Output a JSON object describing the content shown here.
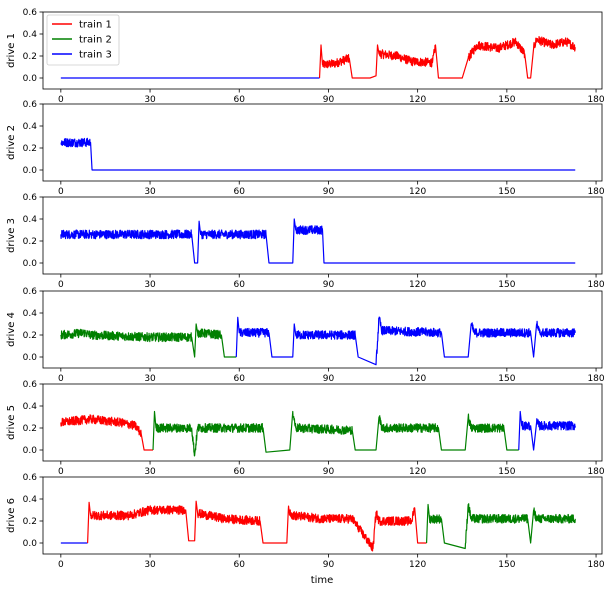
{
  "chart_data": {
    "type": "line",
    "xlabel": "time",
    "xlim": [
      -6,
      182
    ],
    "xticks": [
      0,
      30,
      60,
      90,
      120,
      150,
      180
    ],
    "ylim": [
      -0.1,
      0.6
    ],
    "yticks": [
      0.0,
      0.2,
      0.4,
      0.6
    ],
    "ytick_labels": [
      "0.0",
      "0.2",
      "0.4",
      "0.6"
    ],
    "grid": false,
    "legend_placement": "top-left",
    "colors": {
      "train 1": "#ff0000",
      "train 2": "#008000",
      "train 3": "#0000ff"
    },
    "legend": [
      "train 1",
      "train 2",
      "train 3"
    ],
    "subplots": [
      {
        "ylabel": "drive 1",
        "segments": [
          {
            "series": "train 3",
            "points": [
              [
                0,
                0.0
              ],
              [
                87,
                0.0
              ]
            ]
          },
          {
            "series": "train 1",
            "points": [
              [
                87,
                0.0
              ],
              [
                87.5,
                0.3
              ],
              [
                88,
                0.12
              ],
              [
                92,
                0.13
              ],
              [
                97,
                0.18
              ],
              [
                98,
                0.0
              ],
              [
                98.5,
                0.0
              ],
              [
                104,
                0.0
              ],
              [
                106,
                0.02
              ],
              [
                106.5,
                0.3
              ],
              [
                107,
                0.22
              ],
              [
                113,
                0.2
              ],
              [
                118,
                0.15
              ],
              [
                125,
                0.14
              ],
              [
                126,
                0.3
              ],
              [
                127,
                0.0
              ],
              [
                127.5,
                0.0
              ],
              [
                135,
                0.0
              ],
              [
                137,
                0.18
              ],
              [
                140,
                0.3
              ],
              [
                147,
                0.27
              ],
              [
                153,
                0.33
              ],
              [
                156,
                0.22
              ],
              [
                157,
                0.0
              ],
              [
                158,
                0.0
              ],
              [
                159,
                0.27
              ],
              [
                160,
                0.35
              ],
              [
                165,
                0.3
              ],
              [
                170,
                0.33
              ],
              [
                173,
                0.28
              ]
            ]
          }
        ]
      },
      {
        "ylabel": "drive 2",
        "segments": [
          {
            "series": "train 3",
            "points": [
              [
                0,
                0.25
              ],
              [
                10,
                0.25
              ],
              [
                10.5,
                0.0
              ],
              [
                173,
                0.0
              ]
            ]
          }
        ]
      },
      {
        "ylabel": "drive 3",
        "segments": [
          {
            "series": "train 3",
            "points": [
              [
                0,
                0.26
              ],
              [
                44,
                0.26
              ],
              [
                45,
                0.0
              ],
              [
                46,
                0.0
              ],
              [
                46.5,
                0.38
              ],
              [
                47,
                0.26
              ],
              [
                69,
                0.26
              ],
              [
                70,
                0.0
              ],
              [
                78,
                0.0
              ],
              [
                78.5,
                0.4
              ],
              [
                79,
                0.3
              ],
              [
                88,
                0.3
              ],
              [
                88.5,
                0.0
              ],
              [
                173,
                0.0
              ]
            ]
          }
        ]
      },
      {
        "ylabel": "drive 4",
        "segments": [
          {
            "series": "train 2",
            "points": [
              [
                0,
                0.2
              ],
              [
                8,
                0.22
              ],
              [
                10,
                0.2
              ],
              [
                30,
                0.18
              ],
              [
                44,
                0.18
              ],
              [
                45,
                0.0
              ],
              [
                45.5,
                0.3
              ],
              [
                46,
                0.22
              ],
              [
                54,
                0.2
              ],
              [
                55,
                0.0
              ],
              [
                59,
                0.0
              ]
            ]
          },
          {
            "series": "train 3",
            "points": [
              [
                59,
                0.0
              ],
              [
                59.5,
                0.36
              ],
              [
                60,
                0.22
              ],
              [
                70,
                0.22
              ],
              [
                71,
                0.0
              ],
              [
                78,
                0.0
              ],
              [
                78.5,
                0.3
              ],
              [
                79,
                0.2
              ],
              [
                99,
                0.2
              ],
              [
                100,
                0.0
              ],
              [
                106,
                -0.07
              ],
              [
                107,
                0.35
              ],
              [
                108,
                0.24
              ],
              [
                128,
                0.22
              ],
              [
                129,
                0.0
              ],
              [
                137,
                0.0
              ],
              [
                138,
                0.3
              ],
              [
                139,
                0.22
              ],
              [
                158,
                0.22
              ],
              [
                159,
                0.0
              ],
              [
                160,
                0.3
              ],
              [
                161,
                0.22
              ],
              [
                173,
                0.22
              ]
            ]
          }
        ]
      },
      {
        "ylabel": "drive 5",
        "segments": [
          {
            "series": "train 1",
            "points": [
              [
                0,
                0.25
              ],
              [
                10,
                0.28
              ],
              [
                20,
                0.25
              ],
              [
                25,
                0.22
              ],
              [
                27,
                0.15
              ],
              [
                28,
                0.0
              ],
              [
                31,
                0.0
              ]
            ]
          },
          {
            "series": "train 2",
            "points": [
              [
                31,
                0.0
              ],
              [
                31.5,
                0.35
              ],
              [
                32,
                0.2
              ],
              [
                44,
                0.2
              ],
              [
                45,
                -0.05
              ],
              [
                46,
                0.2
              ],
              [
                68,
                0.2
              ],
              [
                69,
                -0.02
              ],
              [
                77,
                0.0
              ],
              [
                78,
                0.35
              ],
              [
                79,
                0.2
              ],
              [
                98,
                0.18
              ],
              [
                99,
                0.0
              ],
              [
                106,
                0.0
              ],
              [
                107,
                0.3
              ],
              [
                108,
                0.2
              ],
              [
                127,
                0.2
              ],
              [
                128,
                0.0
              ],
              [
                136,
                0.0
              ],
              [
                137,
                0.3
              ],
              [
                138,
                0.2
              ],
              [
                149,
                0.2
              ],
              [
                150,
                0.0
              ],
              [
                154,
                0.0
              ]
            ]
          },
          {
            "series": "train 3",
            "points": [
              [
                154,
                0.0
              ],
              [
                154.5,
                0.35
              ],
              [
                155,
                0.22
              ],
              [
                158,
                0.22
              ],
              [
                159,
                0.0
              ],
              [
                160,
                0.25
              ],
              [
                161,
                0.22
              ],
              [
                173,
                0.22
              ]
            ]
          }
        ]
      },
      {
        "ylabel": "drive 6",
        "segments": [
          {
            "series": "train 3",
            "points": [
              [
                0,
                0.0
              ],
              [
                9,
                0.0
              ]
            ]
          },
          {
            "series": "train 1",
            "points": [
              [
                9,
                0.0
              ],
              [
                9.5,
                0.37
              ],
              [
                10,
                0.25
              ],
              [
                23,
                0.25
              ],
              [
                30,
                0.3
              ],
              [
                42,
                0.3
              ],
              [
                43,
                0.02
              ],
              [
                45,
                0.02
              ],
              [
                45.5,
                0.38
              ],
              [
                46,
                0.27
              ],
              [
                55,
                0.22
              ],
              [
                67,
                0.2
              ],
              [
                68,
                0.0
              ],
              [
                76,
                0.0
              ],
              [
                76.5,
                0.3
              ],
              [
                78,
                0.25
              ],
              [
                88,
                0.22
              ],
              [
                98,
                0.22
              ],
              [
                105,
                -0.05
              ],
              [
                106,
                0.28
              ],
              [
                107,
                0.2
              ],
              [
                118,
                0.2
              ],
              [
                119,
                0.32
              ],
              [
                120,
                0.0
              ],
              [
                123,
                0.0
              ]
            ]
          },
          {
            "series": "train 2",
            "points": [
              [
                123,
                0.0
              ],
              [
                123.5,
                0.35
              ],
              [
                124,
                0.22
              ],
              [
                128,
                0.22
              ],
              [
                129,
                0.0
              ],
              [
                136,
                -0.05
              ],
              [
                137,
                0.35
              ],
              [
                138,
                0.22
              ],
              [
                157,
                0.22
              ],
              [
                158,
                0.0
              ],
              [
                159,
                0.3
              ],
              [
                160,
                0.22
              ],
              [
                173,
                0.22
              ]
            ]
          }
        ]
      }
    ]
  }
}
